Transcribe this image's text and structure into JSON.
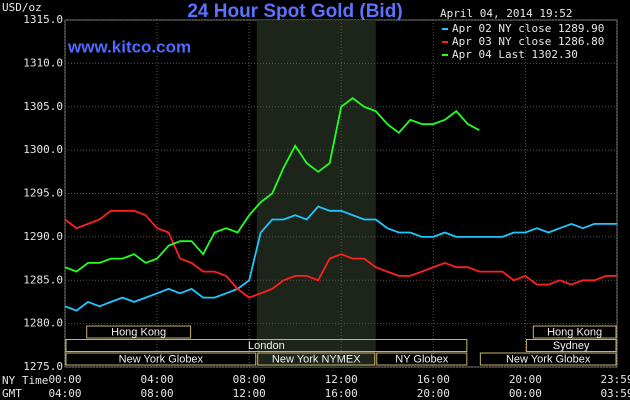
{
  "chart_data": {
    "type": "line",
    "title": "24 Hour Spot Gold (Bid)",
    "website": "www.kitco.com",
    "timestamp": "April 04, 2014 19:52",
    "y_label": "USD/oz",
    "x_label": "NY Time",
    "x2_label": "GMT",
    "x": [
      0,
      0.5,
      1,
      1.5,
      2,
      2.5,
      3,
      3.5,
      4,
      4.5,
      5,
      5.5,
      6,
      6.5,
      7,
      7.5,
      8,
      8.5,
      9,
      9.5,
      10,
      10.5,
      11,
      11.5,
      12,
      12.5,
      13,
      13.5,
      14,
      14.5,
      15,
      15.5,
      16,
      16.5,
      17,
      17.5,
      18,
      18.5,
      19,
      19.5,
      20,
      20.5,
      21,
      21.5,
      22,
      22.5,
      23,
      23.5,
      23.98
    ],
    "series": [
      {
        "name": "Apr 02 NY close 1289.90",
        "color": "#1ec8ff",
        "values": [
          1282,
          1281.5,
          1282.5,
          1282,
          1282.5,
          1283,
          1282.5,
          1283,
          1283.5,
          1284,
          1283.5,
          1284,
          1283,
          1283,
          1283.5,
          1284,
          1285,
          1290.5,
          1292,
          1292,
          1292.5,
          1292,
          1293.5,
          1293,
          1293,
          1292.5,
          1292,
          1292,
          1291,
          1290.5,
          1290.5,
          1290,
          1290,
          1290.5,
          1290,
          1290,
          1290,
          1290,
          1290,
          1290.5,
          1290.5,
          1291,
          1290.5,
          1291,
          1291.5,
          1291,
          1291.5,
          1291.5,
          1291.5
        ]
      },
      {
        "name": "Apr 03 NY close 1286.80",
        "color": "#ff2020",
        "values": [
          1292,
          1291,
          1291.5,
          1292,
          1293,
          1293,
          1293,
          1292.5,
          1291,
          1290.5,
          1287.5,
          1287,
          1286,
          1286,
          1285.5,
          1284,
          1283,
          1283.5,
          1284,
          1285,
          1285.5,
          1285.5,
          1285,
          1287.5,
          1288,
          1287.5,
          1287.5,
          1286.5,
          1286,
          1285.5,
          1285.5,
          1286,
          1286.5,
          1287,
          1286.5,
          1286.5,
          1286,
          1286,
          1286,
          1285,
          1285.5,
          1284.5,
          1284.5,
          1285,
          1284.5,
          1285,
          1285,
          1285.5,
          1285.5
        ]
      },
      {
        "name": "Apr 04 Last 1302.30",
        "color": "#22ff22",
        "values": [
          1286.5,
          1286,
          1287,
          1287,
          1287.5,
          1287.5,
          1288,
          1287,
          1287.5,
          1289,
          1289.5,
          1289.5,
          1288,
          1290.5,
          1291,
          1290.5,
          1292.5,
          1294,
          1295,
          1298,
          1300.5,
          1298.5,
          1297.5,
          1298.5,
          1305,
          1306,
          1305,
          1304.5,
          1303,
          1302,
          1303.5,
          1303,
          1303,
          1303.5,
          1304.5,
          1303,
          1302.3,
          null,
          null,
          null,
          null,
          null,
          null,
          null,
          null,
          null,
          null,
          null,
          null
        ]
      }
    ],
    "xlim": [
      0,
      23.98
    ],
    "ylim": [
      1275,
      1315
    ],
    "xticks": [
      {
        "value": 0,
        "label": "00:00"
      },
      {
        "value": 4,
        "label": "04:00"
      },
      {
        "value": 8,
        "label": "08:00"
      },
      {
        "value": 12,
        "label": "12:00"
      },
      {
        "value": 16,
        "label": "16:00"
      },
      {
        "value": 20,
        "label": "20:00"
      },
      {
        "value": 23.98,
        "label": "23:59"
      }
    ],
    "x2ticks": [
      {
        "value": 0,
        "label": "04:00"
      },
      {
        "value": 4,
        "label": "08:00"
      },
      {
        "value": 8,
        "label": "12:00"
      },
      {
        "value": 12,
        "label": "16:00"
      },
      {
        "value": 16,
        "label": "20:00"
      },
      {
        "value": 20,
        "label": "00:00"
      },
      {
        "value": 23.98,
        "label": "03:59"
      }
    ],
    "yticks": [
      {
        "value": 1275,
        "label": "1275.0"
      },
      {
        "value": 1280,
        "label": "1280.0"
      },
      {
        "value": 1285,
        "label": "1285.0"
      },
      {
        "value": 1290,
        "label": "1290.0"
      },
      {
        "value": 1295,
        "label": "1295.0"
      },
      {
        "value": 1300,
        "label": "1300.0"
      },
      {
        "value": 1305,
        "label": "1305.0"
      },
      {
        "value": 1310,
        "label": "1310.0"
      },
      {
        "value": 1315,
        "label": "1315.0"
      }
    ],
    "grid": true,
    "highlight": [
      8.33,
      13.5
    ],
    "session_rows": [
      [
        {
          "label": "Hong Kong",
          "start": 0.9,
          "end": 5.5
        },
        {
          "label": "Hong Kong",
          "start": 20.3,
          "end": 23.98
        }
      ],
      [
        {
          "label": "London",
          "start": 0,
          "end": 17.5
        },
        {
          "label": "Sydney",
          "start": 20,
          "end": 23.98
        }
      ],
      [
        {
          "label": "New York Globex",
          "start": 0,
          "end": 8.33
        },
        {
          "label": "New York NYMEX",
          "start": 8.33,
          "end": 13.5
        },
        {
          "label": "NY Globex",
          "start": 13.5,
          "end": 17.5
        },
        {
          "label": "New York Globex",
          "start": 18,
          "end": 23.98
        }
      ]
    ]
  }
}
